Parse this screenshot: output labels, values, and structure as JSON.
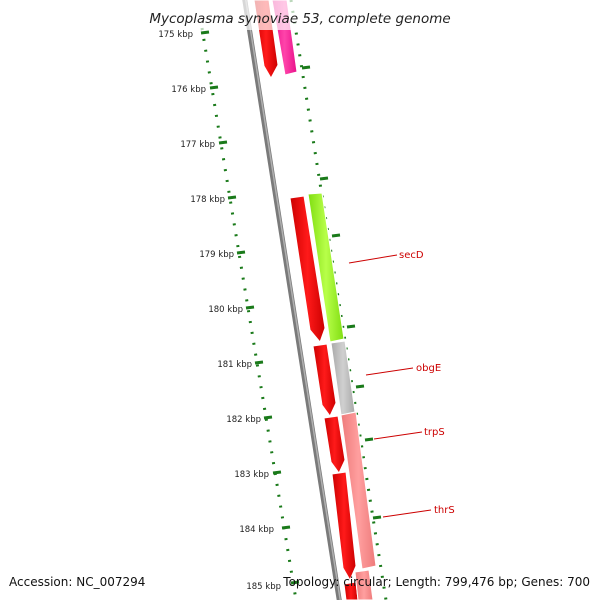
{
  "title": "Mycoplasma synoviae 53, complete genome",
  "footer": {
    "accession": "Accession: NC_007294",
    "topology": "Topology: circular; Length: 799,476 bp; Genes: 700"
  },
  "scale_ticks": [
    "175 kbp",
    "176 kbp",
    "177 kbp",
    "178 kbp",
    "179 kbp",
    "180 kbp",
    "181 kbp",
    "182 kbp",
    "183 kbp",
    "184 kbp",
    "185 kbp"
  ],
  "gene_labels": [
    "secD",
    "obgE",
    "trpS",
    "thrS"
  ],
  "colors": {
    "background": "#ffffff",
    "backbone": "#808080",
    "dotted_track": "#1a7a1a",
    "forward_gene": "#ff0000",
    "secD": "#aaff33",
    "obgE": "#c0c0c0",
    "trpS_thrS": "#f48b8b",
    "pink_gene": "#ff1493",
    "label": "#cc0000"
  }
}
